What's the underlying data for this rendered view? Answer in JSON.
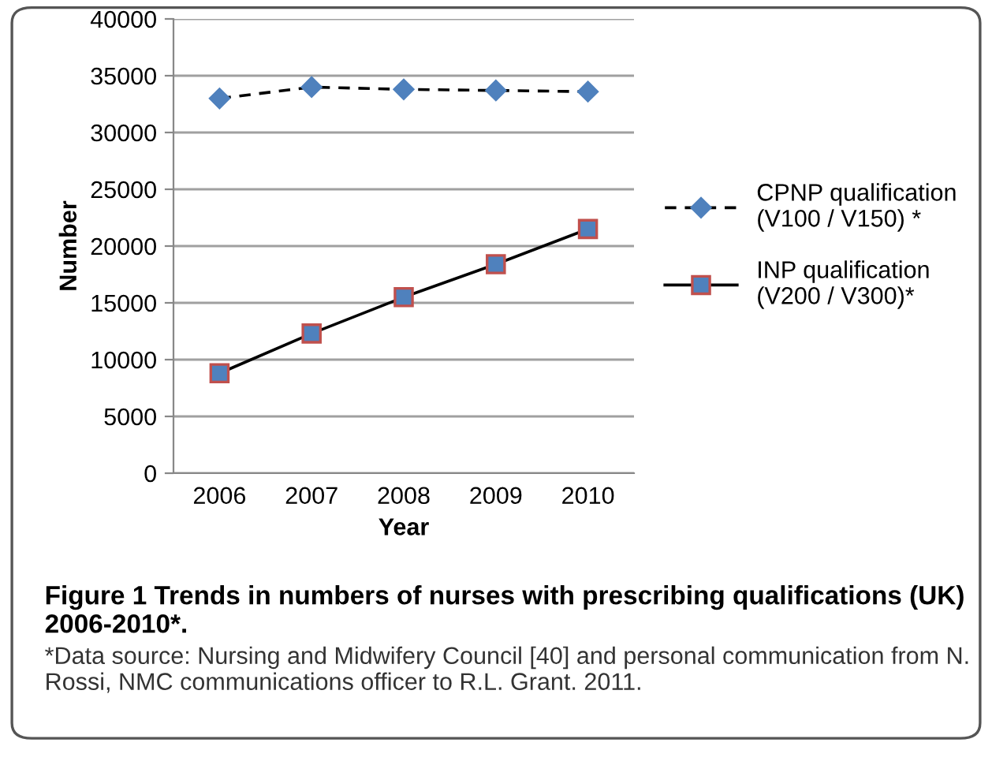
{
  "chart_data": {
    "type": "line",
    "title": "Figure 1 Trends in numbers of nurses with prescribing qualifications (UK) 2006-2010*.",
    "xlabel": "Year",
    "ylabel": "Number",
    "categories": [
      "2006",
      "2007",
      "2008",
      "2009",
      "2010"
    ],
    "series": [
      {
        "name": "CPNP qualification\n(V100 / V150) *",
        "color": "#4f81bd",
        "values": [
          33000,
          34000,
          33800,
          33700,
          33600
        ],
        "marker": "diamond",
        "line_style": "dashed"
      },
      {
        "name": "INP qualification\n(V200 / V300)*",
        "color": "#4f81bd",
        "values": [
          8800,
          12300,
          15500,
          18400,
          21500
        ],
        "marker": "square",
        "line_style": "solid"
      }
    ],
    "ylim": [
      0,
      40000
    ],
    "yticks": [
      0,
      5000,
      10000,
      15000,
      20000,
      25000,
      30000,
      35000,
      40000
    ],
    "grid": "y",
    "legend": "right",
    "annotations": [
      "*Data source: Nursing and Midwifery Council [40] and personal communication from N. Rossi, NMC communications officer to R.L. Grant. 2011."
    ]
  }
}
